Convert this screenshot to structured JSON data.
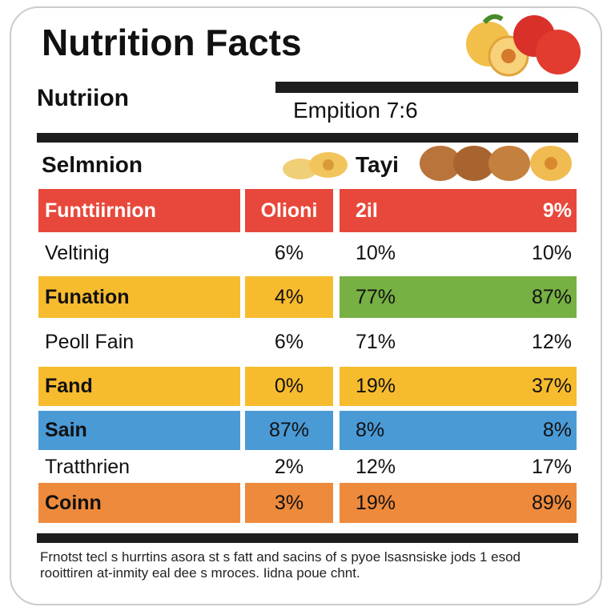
{
  "header": {
    "title": "Nutrition Facts",
    "subtitle": "Nutriion",
    "serving": "Empition 7:6"
  },
  "section": {
    "left": "Selmnion",
    "right": "Tayi"
  },
  "table": {
    "head": {
      "cells": [
        "Funttiirnion",
        "Olioni",
        "2il",
        "9%"
      ],
      "fill": "#e8483b"
    },
    "rows": [
      {
        "cells": [
          "Veltinig",
          "6%",
          "10%",
          "10%"
        ]
      },
      {
        "cells": [
          "Funation",
          "4%",
          "77%",
          "87%"
        ],
        "fill": "#f7bb2e",
        "fill_right": "#77b043"
      },
      {
        "cells": [
          "Peoll Fain",
          "6%",
          "71%",
          "12%"
        ]
      },
      {
        "cells": [
          "Fand",
          "0%",
          "19%",
          "37%"
        ],
        "fill": "#f7bb2e"
      },
      {
        "cells": [
          "Sain",
          "87%",
          "8%",
          "8%"
        ],
        "fill": "#4a9ad6"
      },
      {
        "cells": [
          "Tratthrien",
          "2%",
          "12%",
          "17%"
        ]
      },
      {
        "cells": [
          "Coinn",
          "3%",
          "19%",
          "89%"
        ],
        "fill": "#ee8a3c"
      }
    ]
  },
  "footer": {
    "lines": [
      "Frnotst tecl s hurrtins asora st s fatt and sacins of s pyoe lsasnsiske jods 1 esod",
      "rooittiren at-inmity eal dee s mroces. Iidna poue chnt."
    ]
  }
}
